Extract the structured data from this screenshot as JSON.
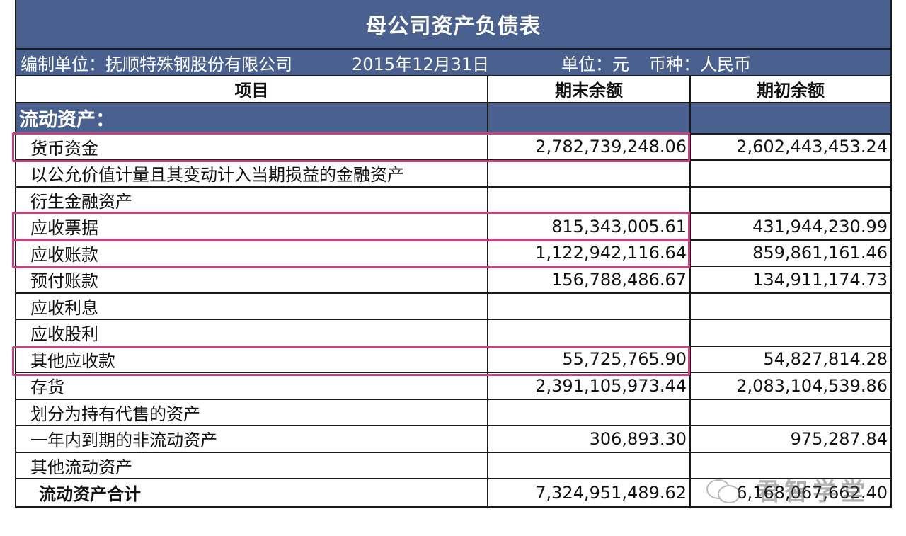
{
  "title": "母公司资产负债表",
  "meta": {
    "company": "编制单位：抚顺特殊钢股份有限公司",
    "date": "2015年12月31日",
    "unit": "单位：元",
    "currency": "币种：人民币"
  },
  "columns": [
    "项目",
    "期末余额",
    "期初余额"
  ],
  "section": "流动资产：",
  "rows": [
    {
      "item": "货币资金",
      "end": "2,782,739,248.06",
      "begin": "2,602,443,453.24"
    },
    {
      "item": "以公允价值计量且其变动计入当期损益的金融资产",
      "end": "",
      "begin": ""
    },
    {
      "item": "衍生金融资产",
      "end": "",
      "begin": ""
    },
    {
      "item": "应收票据",
      "end": "815,343,005.61",
      "begin": "431,944,230.99"
    },
    {
      "item": "应收账款",
      "end": "1,122,942,116.64",
      "begin": "859,861,161.46"
    },
    {
      "item": "预付账款",
      "end": "156,788,486.67",
      "begin": "134,911,174.73"
    },
    {
      "item": "应收利息",
      "end": "",
      "begin": ""
    },
    {
      "item": "应收股利",
      "end": "",
      "begin": ""
    },
    {
      "item": "其他应收款",
      "end": "55,725,765.90",
      "begin": "54,827,814.28"
    },
    {
      "item": "存货",
      "end": "2,391,105,973.44",
      "begin": "2,083,104,539.86"
    },
    {
      "item": "划分为持有代售的资产",
      "end": "",
      "begin": ""
    },
    {
      "item": "一年内到期的非流动资产",
      "end": "306,893.30",
      "begin": "975,287.84"
    },
    {
      "item": "其他流动资产",
      "end": "",
      "begin": ""
    }
  ],
  "total": {
    "item": "流动资产合计",
    "end": "7,324,951,489.62",
    "begin": "6,168,067,662.40"
  },
  "watermark": "君智学堂",
  "colors": {
    "header_bg": "#4a6190",
    "highlight": "#c2437f"
  }
}
